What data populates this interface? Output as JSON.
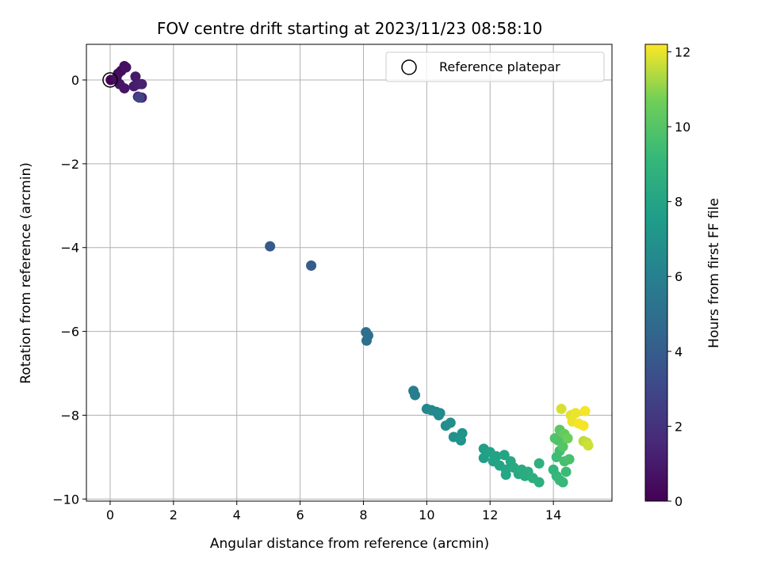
{
  "chart_data": {
    "type": "scatter",
    "title": "FOV centre drift starting at 2023/11/23 08:58:10",
    "xlabel": "Angular distance from reference (arcmin)",
    "ylabel": "Rotation from reference (arcmin)",
    "xlim": [
      -0.75,
      15.85
    ],
    "ylim": [
      -10.05,
      0.85
    ],
    "xticks": [
      0,
      2,
      4,
      6,
      8,
      10,
      12,
      14
    ],
    "yticks": [
      0,
      -2,
      -4,
      -6,
      -8,
      -10
    ],
    "grid": true,
    "legend": {
      "placement": "top-right",
      "entries": [
        "Reference platepar"
      ]
    },
    "reference_point": {
      "x": 0,
      "y": 0
    },
    "colorbar": {
      "label": "Hours from first FF file",
      "min": 0,
      "max": 12.2,
      "ticks": [
        0,
        2,
        4,
        6,
        8,
        10,
        12
      ],
      "colormap": "viridis"
    },
    "points": [
      {
        "x": 0.02,
        "y": 0.0,
        "c": 0.1
      },
      {
        "x": 0.15,
        "y": 0.02,
        "c": 0.2
      },
      {
        "x": 0.25,
        "y": 0.15,
        "c": 0.3
      },
      {
        "x": 0.35,
        "y": 0.22,
        "c": 0.4
      },
      {
        "x": 0.45,
        "y": 0.33,
        "c": 0.5
      },
      {
        "x": 0.5,
        "y": 0.3,
        "c": 0.6
      },
      {
        "x": 0.3,
        "y": -0.1,
        "c": 0.7
      },
      {
        "x": 0.45,
        "y": -0.2,
        "c": 0.8
      },
      {
        "x": 0.2,
        "y": 0.05,
        "c": 0.5
      },
      {
        "x": 0.8,
        "y": 0.08,
        "c": 0.9
      },
      {
        "x": 0.75,
        "y": -0.15,
        "c": 1.0
      },
      {
        "x": 0.9,
        "y": -0.1,
        "c": 1.1
      },
      {
        "x": 1.0,
        "y": -0.1,
        "c": 1.2
      },
      {
        "x": 0.88,
        "y": -0.4,
        "c": 1.3
      },
      {
        "x": 1.0,
        "y": -0.42,
        "c": 1.4
      },
      {
        "x": 0.92,
        "y": -0.42,
        "c": 2.8
      },
      {
        "x": 5.05,
        "y": -3.97,
        "c": 3.9
      },
      {
        "x": 6.35,
        "y": -4.43,
        "c": 4.0
      },
      {
        "x": 8.08,
        "y": -6.02,
        "c": 4.9
      },
      {
        "x": 8.15,
        "y": -6.1,
        "c": 5.0
      },
      {
        "x": 8.1,
        "y": -6.22,
        "c": 5.0
      },
      {
        "x": 9.58,
        "y": -7.42,
        "c": 5.8
      },
      {
        "x": 9.63,
        "y": -7.52,
        "c": 5.9
      },
      {
        "x": 10.0,
        "y": -7.85,
        "c": 6.3
      },
      {
        "x": 10.15,
        "y": -7.88,
        "c": 6.4
      },
      {
        "x": 10.3,
        "y": -7.92,
        "c": 6.5
      },
      {
        "x": 10.38,
        "y": -8.0,
        "c": 6.6
      },
      {
        "x": 10.42,
        "y": -7.95,
        "c": 6.6
      },
      {
        "x": 10.6,
        "y": -8.25,
        "c": 6.7
      },
      {
        "x": 10.75,
        "y": -8.18,
        "c": 6.8
      },
      {
        "x": 10.85,
        "y": -8.52,
        "c": 6.9
      },
      {
        "x": 11.05,
        "y": -8.52,
        "c": 7.0
      },
      {
        "x": 11.12,
        "y": -8.43,
        "c": 7.0
      },
      {
        "x": 11.08,
        "y": -8.6,
        "c": 7.1
      },
      {
        "x": 11.8,
        "y": -8.8,
        "c": 7.6
      },
      {
        "x": 11.8,
        "y": -9.02,
        "c": 7.7
      },
      {
        "x": 12.0,
        "y": -8.88,
        "c": 7.8
      },
      {
        "x": 12.1,
        "y": -9.1,
        "c": 7.9
      },
      {
        "x": 12.2,
        "y": -8.98,
        "c": 7.9
      },
      {
        "x": 12.3,
        "y": -9.2,
        "c": 8.0
      },
      {
        "x": 12.45,
        "y": -8.95,
        "c": 8.0
      },
      {
        "x": 12.5,
        "y": -9.3,
        "c": 8.1
      },
      {
        "x": 12.5,
        "y": -9.42,
        "c": 8.1
      },
      {
        "x": 12.65,
        "y": -9.1,
        "c": 8.2
      },
      {
        "x": 12.75,
        "y": -9.25,
        "c": 8.3
      },
      {
        "x": 12.9,
        "y": -9.4,
        "c": 8.3
      },
      {
        "x": 13.0,
        "y": -9.3,
        "c": 8.4
      },
      {
        "x": 13.1,
        "y": -9.45,
        "c": 8.4
      },
      {
        "x": 13.2,
        "y": -9.35,
        "c": 8.5
      },
      {
        "x": 13.35,
        "y": -9.5,
        "c": 8.6
      },
      {
        "x": 13.55,
        "y": -9.6,
        "c": 8.6
      },
      {
        "x": 13.55,
        "y": -9.15,
        "c": 8.7
      },
      {
        "x": 14.0,
        "y": -9.3,
        "c": 9.0
      },
      {
        "x": 14.1,
        "y": -9.45,
        "c": 9.1
      },
      {
        "x": 14.2,
        "y": -9.55,
        "c": 9.2
      },
      {
        "x": 14.3,
        "y": -9.6,
        "c": 9.2
      },
      {
        "x": 14.4,
        "y": -9.35,
        "c": 9.3
      },
      {
        "x": 14.1,
        "y": -9.0,
        "c": 9.4
      },
      {
        "x": 14.2,
        "y": -8.85,
        "c": 9.5
      },
      {
        "x": 14.35,
        "y": -9.1,
        "c": 9.6
      },
      {
        "x": 14.5,
        "y": -9.05,
        "c": 9.7
      },
      {
        "x": 14.15,
        "y": -8.6,
        "c": 9.8
      },
      {
        "x": 14.05,
        "y": -8.55,
        "c": 9.9
      },
      {
        "x": 14.3,
        "y": -8.75,
        "c": 10.0
      },
      {
        "x": 14.2,
        "y": -8.35,
        "c": 10.2
      },
      {
        "x": 14.35,
        "y": -8.45,
        "c": 10.4
      },
      {
        "x": 14.45,
        "y": -8.55,
        "c": 10.6
      },
      {
        "x": 14.25,
        "y": -7.85,
        "c": 11.8
      },
      {
        "x": 14.55,
        "y": -8.0,
        "c": 11.9
      },
      {
        "x": 14.6,
        "y": -8.15,
        "c": 12.0
      },
      {
        "x": 14.7,
        "y": -7.95,
        "c": 12.0
      },
      {
        "x": 14.8,
        "y": -8.2,
        "c": 12.1
      },
      {
        "x": 14.95,
        "y": -8.25,
        "c": 12.1
      },
      {
        "x": 15.0,
        "y": -7.9,
        "c": 12.1
      },
      {
        "x": 14.95,
        "y": -8.62,
        "c": 11.5
      },
      {
        "x": 15.05,
        "y": -8.65,
        "c": 11.6
      },
      {
        "x": 15.1,
        "y": -8.72,
        "c": 11.7
      }
    ]
  }
}
